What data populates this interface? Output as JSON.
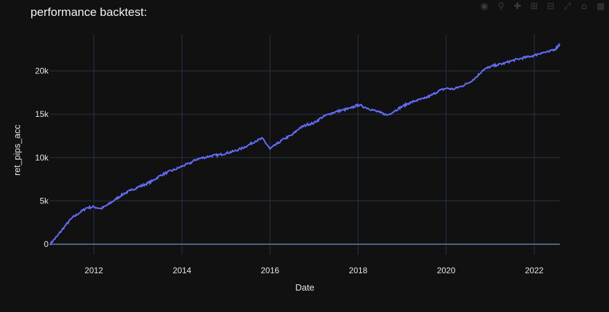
{
  "modebar": {
    "icons": [
      "camera-icon",
      "zoom-icon",
      "pan-icon",
      "zoom-in-icon",
      "zoom-out-icon",
      "autoscale-icon",
      "home-icon",
      "plotly-logo-icon"
    ]
  },
  "chart_data": {
    "type": "line",
    "title": "performance backtest:",
    "xlabel": "Date",
    "ylabel": "ret_pips_acc",
    "x_range": [
      "2011-01-01",
      "2022-08-01"
    ],
    "ylim": [
      -1200,
      24200
    ],
    "x_tick_labels": [
      "2012",
      "2014",
      "2016",
      "2018",
      "2020",
      "2022"
    ],
    "y_tick_labels": [
      "0",
      "5k",
      "10k",
      "15k",
      "20k"
    ],
    "y_tick_values": [
      0,
      5000,
      10000,
      15000,
      20000
    ],
    "grid": true,
    "line_color": "#636efa",
    "series": [
      {
        "x": [
          "2011-01-01",
          "2011-03-01",
          "2011-05-01",
          "2011-07-01",
          "2011-09-01",
          "2011-11-01",
          "2012-01-01",
          "2012-03-01",
          "2012-05-01",
          "2012-07-01",
          "2012-09-01",
          "2012-11-01",
          "2013-01-01",
          "2013-03-01",
          "2013-05-01",
          "2013-07-01",
          "2013-09-01",
          "2013-11-01",
          "2014-01-01",
          "2014-03-01",
          "2014-05-01",
          "2014-07-01",
          "2014-09-01",
          "2014-11-01",
          "2015-01-01",
          "2015-03-01",
          "2015-05-01",
          "2015-07-01",
          "2015-09-01",
          "2015-11-01",
          "2016-01-01",
          "2016-03-01",
          "2016-05-01",
          "2016-07-01",
          "2016-09-01",
          "2016-11-01",
          "2017-01-01",
          "2017-03-01",
          "2017-05-01",
          "2017-07-01",
          "2017-09-01",
          "2017-11-01",
          "2018-01-01",
          "2018-03-01",
          "2018-05-01",
          "2018-07-01",
          "2018-09-01",
          "2018-11-01",
          "2019-01-01",
          "2019-03-01",
          "2019-05-01",
          "2019-07-01",
          "2019-09-01",
          "2019-11-01",
          "2020-01-01",
          "2020-03-01",
          "2020-05-01",
          "2020-07-01",
          "2020-09-01",
          "2020-11-01",
          "2021-01-01",
          "2021-03-01",
          "2021-05-01",
          "2021-07-01",
          "2021-09-01",
          "2021-11-01",
          "2022-01-01",
          "2022-03-01",
          "2022-05-01",
          "2022-07-01",
          "2022-08-01"
        ],
        "y": [
          0,
          900,
          2000,
          3000,
          3600,
          4200,
          4300,
          4100,
          4600,
          5200,
          5800,
          6200,
          6600,
          6900,
          7300,
          7900,
          8300,
          8600,
          9000,
          9300,
          9800,
          10000,
          10200,
          10300,
          10500,
          10700,
          11000,
          11400,
          11900,
          12200,
          11000,
          11600,
          12200,
          12600,
          13400,
          13800,
          14000,
          14600,
          15000,
          15300,
          15500,
          15700,
          16100,
          15800,
          15500,
          15200,
          14900,
          15400,
          15900,
          16300,
          16600,
          16800,
          17200,
          17700,
          18000,
          17900,
          18200,
          18600,
          19200,
          20100,
          20500,
          20700,
          20900,
          21200,
          21400,
          21600,
          21800,
          22100,
          22200,
          22600,
          23100
        ]
      }
    ]
  }
}
